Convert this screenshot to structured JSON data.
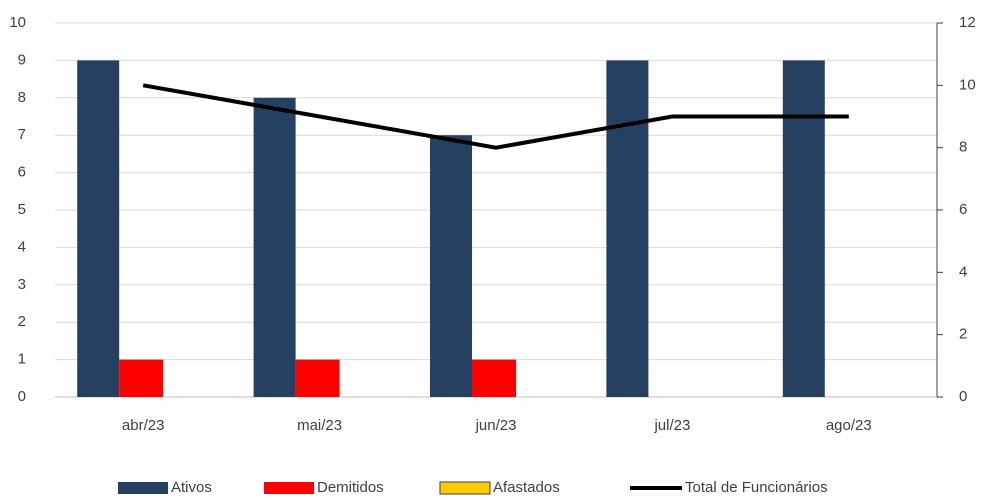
{
  "chart_data": {
    "type": "bar",
    "categories": [
      "abr/23",
      "mai/23",
      "jun/23",
      "jul/23",
      "ago/23"
    ],
    "series": [
      {
        "name": "Ativos",
        "color": "#264061",
        "values": [
          9,
          8,
          7,
          9,
          9
        ]
      },
      {
        "name": "Demitidos",
        "color": "#ff0000",
        "values": [
          1,
          1,
          1,
          0,
          0
        ]
      },
      {
        "name": "Afastados",
        "color": "#ffcc00",
        "values": [
          0,
          0,
          0,
          0,
          0
        ]
      },
      {
        "name": "Total de Funcionários",
        "type": "line",
        "axis": "y2",
        "color": "#000000",
        "values": [
          10,
          9,
          8,
          9,
          9
        ]
      }
    ],
    "ylim": [
      0,
      10
    ],
    "yticks": [
      0,
      1,
      2,
      3,
      4,
      5,
      6,
      7,
      8,
      9,
      10
    ],
    "y2lim": [
      0,
      12
    ],
    "y2ticks": [
      0,
      2,
      4,
      6,
      8,
      10,
      12
    ],
    "grid": true,
    "legend": "bottom"
  }
}
